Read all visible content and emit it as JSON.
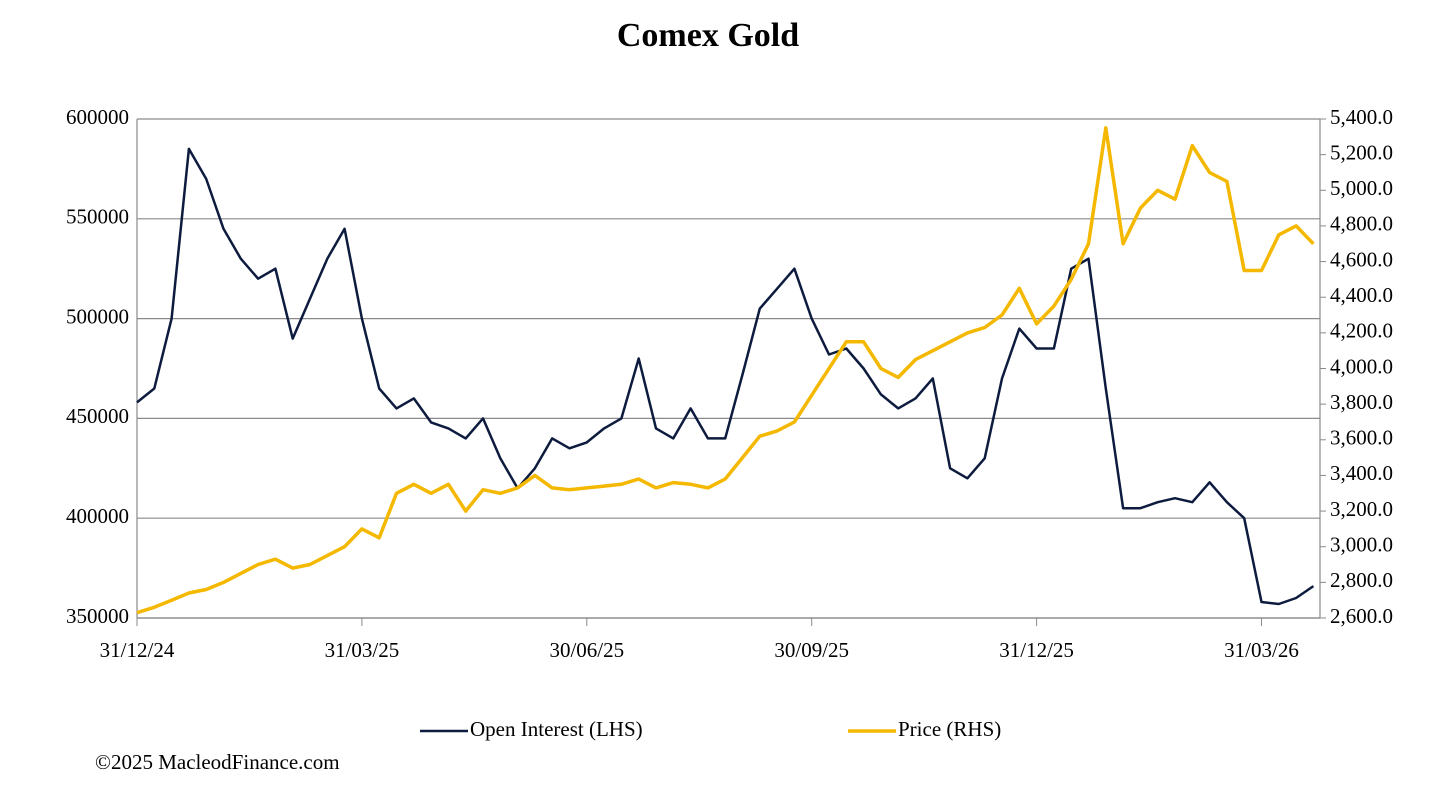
{
  "chart_data": {
    "type": "line",
    "title": "Comex Gold",
    "footer": "©2025 MacleodFinance.com",
    "categories": [
      "31/12/24",
      null,
      null,
      null,
      null,
      null,
      null,
      null,
      null,
      null,
      null,
      null,
      null,
      "31/03/25",
      null,
      null,
      null,
      null,
      null,
      null,
      null,
      null,
      null,
      null,
      null,
      null,
      "30/06/25",
      null,
      null,
      null,
      null,
      null,
      null,
      null,
      null,
      null,
      null,
      null,
      null,
      "30/09/25",
      null,
      null,
      null,
      null,
      null,
      null,
      null,
      null,
      null,
      null,
      null,
      null,
      "31/12/25",
      null,
      null,
      null,
      null,
      null,
      null,
      null,
      null,
      null,
      null,
      null,
      null,
      "31/03/26",
      null,
      null,
      null
    ],
    "series": [
      {
        "name": "Open Interest (LHS)",
        "color": "#0d1b3e",
        "axis": "y",
        "values": [
          458000,
          465000,
          500000,
          585000,
          570000,
          545000,
          530000,
          520000,
          525000,
          490000,
          510000,
          530000,
          545000,
          500000,
          465000,
          455000,
          460000,
          448000,
          445000,
          440000,
          450000,
          430000,
          415000,
          425000,
          440000,
          435000,
          438000,
          445000,
          450000,
          480000,
          445000,
          440000,
          455000,
          440000,
          440000,
          472000,
          505000,
          515000,
          525000,
          500000,
          482000,
          485000,
          475000,
          462000,
          455000,
          460000,
          470000,
          425000,
          420000,
          430000,
          470000,
          495000,
          485000,
          485000,
          525000,
          530000,
          465000,
          405000,
          405000,
          408000,
          410000,
          408000,
          418000,
          408000,
          400000,
          358000,
          357000,
          360000,
          366000
        ]
      },
      {
        "name": "Price (RHS)",
        "color": "#f5b800",
        "axis": "y2",
        "values": [
          2630,
          2660,
          2700,
          2740,
          2760,
          2800,
          2850,
          2900,
          2930,
          2880,
          2900,
          2950,
          3000,
          3100,
          3050,
          3300,
          3350,
          3300,
          3350,
          3200,
          3320,
          3300,
          3330,
          3400,
          3330,
          3320,
          3330,
          3340,
          3350,
          3380,
          3330,
          3360,
          3350,
          3330,
          3380,
          3500,
          3620,
          3650,
          3700,
          3850,
          4000,
          4150,
          4150,
          4000,
          3950,
          4050,
          4100,
          4150,
          4200,
          4230,
          4300,
          4450,
          4250,
          4350,
          4500,
          4700,
          5350,
          4700,
          4900,
          5000,
          4950,
          5250,
          5100,
          5050,
          4550,
          4550,
          4750,
          4800,
          4700
        ]
      }
    ],
    "ylim": [
      350000,
      600000
    ],
    "yticks": [
      350000,
      400000,
      450000,
      500000,
      550000,
      600000
    ],
    "y2lim": [
      2600,
      5400
    ],
    "y2ticks": [
      {
        "value": 2600,
        "label": "2,600.0"
      },
      {
        "value": 2800,
        "label": "2,800.0"
      },
      {
        "value": 3000,
        "label": "3,000.0"
      },
      {
        "value": 3200,
        "label": "3,200.0"
      },
      {
        "value": 3400,
        "label": "3,400.0"
      },
      {
        "value": 3600,
        "label": "3,600.0"
      },
      {
        "value": 3800,
        "label": "3,800.0"
      },
      {
        "value": 4000,
        "label": "4,000.0"
      },
      {
        "value": 4200,
        "label": "4,200.0"
      },
      {
        "value": 4400,
        "label": "4,400.0"
      },
      {
        "value": 4600,
        "label": "4,600.0"
      },
      {
        "value": 4800,
        "label": "4,800.0"
      },
      {
        "value": 5000,
        "label": "5,000.0"
      },
      {
        "value": 5200,
        "label": "5,200.0"
      },
      {
        "value": 5400,
        "label": "5,400.0"
      }
    ],
    "grid": true,
    "legend": "bottom"
  }
}
